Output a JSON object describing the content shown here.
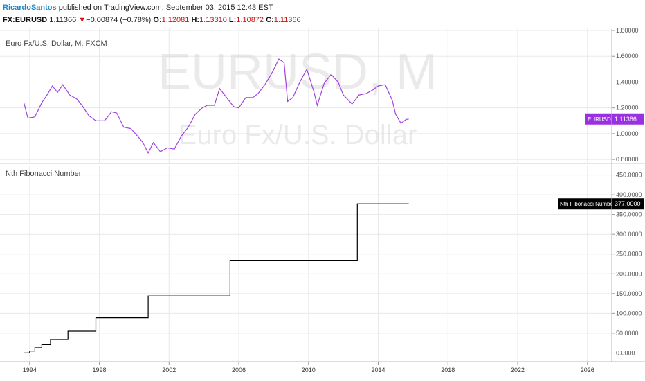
{
  "header": {
    "author": "RicardoSantos",
    "published_text": "published on TradingView.com, September 03, 2015 12:43 EST",
    "symbol": "FX:EURUSD",
    "last": "1.11366",
    "change_arrow": "▼",
    "change": "−0.00874 (−0.78%)",
    "o_label": "O:",
    "o_value": "1.12081",
    "h_label": "H:",
    "h_value": "1.13310",
    "l_label": "L:",
    "l_value": "1.10872",
    "c_label": "C:",
    "c_value": "1.11366"
  },
  "colors": {
    "price_line": "#a040e0",
    "price_badge": "#9b30e0",
    "fib_line": "#000000",
    "fib_badge": "#000000",
    "grid": "#e8e8e8",
    "down": "#cc1111"
  },
  "chart_data": [
    {
      "type": "line",
      "title": "Euro Fx/U.S. Dollar, M, FXCM",
      "watermark": [
        "EURUSD, M",
        "Euro Fx/U.S. Dollar"
      ],
      "series": [
        {
          "name": "EURUSD",
          "last_label": "1.11366",
          "points": [
            [
              1993.67,
              1.24
            ],
            [
              1993.9,
              1.12
            ],
            [
              1994.3,
              1.13
            ],
            [
              1994.7,
              1.24
            ],
            [
              1995.0,
              1.3
            ],
            [
              1995.3,
              1.37
            ],
            [
              1995.6,
              1.32
            ],
            [
              1995.9,
              1.38
            ],
            [
              1996.3,
              1.3
            ],
            [
              1996.7,
              1.27
            ],
            [
              1997.0,
              1.22
            ],
            [
              1997.4,
              1.14
            ],
            [
              1997.8,
              1.1
            ],
            [
              1998.3,
              1.1
            ],
            [
              1998.7,
              1.17
            ],
            [
              1999.0,
              1.16
            ],
            [
              1999.4,
              1.05
            ],
            [
              1999.8,
              1.04
            ],
            [
              2000.2,
              0.98
            ],
            [
              2000.5,
              0.93
            ],
            [
              2000.8,
              0.85
            ],
            [
              2001.1,
              0.93
            ],
            [
              2001.5,
              0.86
            ],
            [
              2001.9,
              0.89
            ],
            [
              2002.3,
              0.88
            ],
            [
              2002.7,
              0.98
            ],
            [
              2003.1,
              1.05
            ],
            [
              2003.5,
              1.15
            ],
            [
              2003.9,
              1.2
            ],
            [
              2004.2,
              1.22
            ],
            [
              2004.6,
              1.22
            ],
            [
              2004.9,
              1.35
            ],
            [
              2005.3,
              1.28
            ],
            [
              2005.7,
              1.21
            ],
            [
              2006.0,
              1.2
            ],
            [
              2006.4,
              1.28
            ],
            [
              2006.8,
              1.28
            ],
            [
              2007.1,
              1.31
            ],
            [
              2007.5,
              1.38
            ],
            [
              2007.9,
              1.47
            ],
            [
              2008.3,
              1.58
            ],
            [
              2008.6,
              1.55
            ],
            [
              2008.8,
              1.25
            ],
            [
              2009.1,
              1.28
            ],
            [
              2009.5,
              1.4
            ],
            [
              2009.9,
              1.5
            ],
            [
              2010.3,
              1.33
            ],
            [
              2010.5,
              1.22
            ],
            [
              2010.9,
              1.39
            ],
            [
              2011.3,
              1.46
            ],
            [
              2011.7,
              1.4
            ],
            [
              2012.0,
              1.3
            ],
            [
              2012.5,
              1.23
            ],
            [
              2012.9,
              1.3
            ],
            [
              2013.3,
              1.31
            ],
            [
              2013.7,
              1.34
            ],
            [
              2014.0,
              1.37
            ],
            [
              2014.4,
              1.38
            ],
            [
              2014.8,
              1.26
            ],
            [
              2015.0,
              1.15
            ],
            [
              2015.3,
              1.08
            ],
            [
              2015.6,
              1.11
            ],
            [
              2015.75,
              1.11366
            ]
          ]
        }
      ],
      "y_ticks": [
        "1.80000",
        "1.60000",
        "1.40000",
        "1.20000",
        "1.00000",
        "0.80000"
      ],
      "ylim": [
        0.79,
        1.8
      ]
    },
    {
      "type": "line",
      "title": "Nth Fibonacci Number",
      "series": [
        {
          "name": "Nth Fibonacci Number",
          "last_label": "377.0000",
          "steps": [
            [
              1993.67,
              0
            ],
            [
              1994.0,
              5
            ],
            [
              1994.3,
              13
            ],
            [
              1994.7,
              21
            ],
            [
              1995.2,
              34
            ],
            [
              1996.2,
              55
            ],
            [
              1997.8,
              89
            ],
            [
              2000.8,
              144
            ],
            [
              2005.5,
              233
            ],
            [
              2012.8,
              377
            ],
            [
              2015.75,
              377
            ]
          ]
        }
      ],
      "y_ticks": [
        "450.0000",
        "400.0000",
        "350.0000",
        "300.0000",
        "250.0000",
        "200.0000",
        "150.0000",
        "100.0000",
        "50.0000",
        "0.0000"
      ],
      "ylim": [
        -15,
        465
      ]
    }
  ],
  "x_axis": {
    "ticks": [
      "1994",
      "1998",
      "2002",
      "2006",
      "2010",
      "2014",
      "2018",
      "2022",
      "2026"
    ],
    "range": [
      1992.3,
      2027.4
    ]
  }
}
